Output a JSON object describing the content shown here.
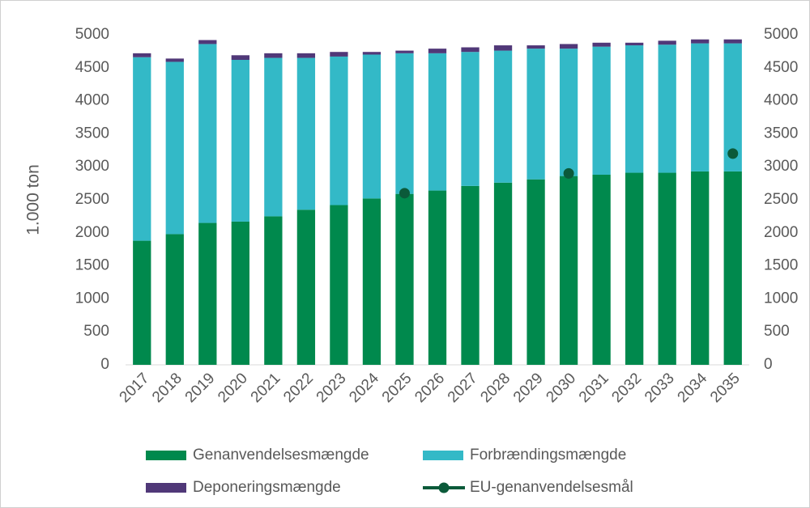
{
  "chart_data": {
    "type": "bar",
    "stacked": true,
    "ylabel": "1.000 ton",
    "categories": [
      "2017",
      "2018",
      "2019",
      "2020",
      "2021",
      "2022",
      "2023",
      "2024",
      "2025",
      "2026",
      "2027",
      "2028",
      "2029",
      "2030",
      "2031",
      "2032",
      "2033",
      "2034",
      "2035"
    ],
    "series": [
      {
        "name": "Genanvendelsesmængde",
        "color": "#00894d",
        "values": [
          1880,
          1980,
          2150,
          2170,
          2250,
          2350,
          2420,
          2520,
          2590,
          2640,
          2710,
          2760,
          2810,
          2860,
          2880,
          2910,
          2910,
          2930,
          2930
        ]
      },
      {
        "name": "Forbrændingsmængde",
        "color": "#33b9c7",
        "values": [
          2780,
          2610,
          2710,
          2450,
          2400,
          2300,
          2250,
          2180,
          2130,
          2080,
          2030,
          2000,
          1980,
          1930,
          1940,
          1930,
          1940,
          1940,
          1940
        ]
      },
      {
        "name": "Deponeringsmængde",
        "color": "#503878",
        "values": [
          60,
          50,
          60,
          70,
          70,
          70,
          70,
          40,
          40,
          70,
          70,
          80,
          50,
          70,
          60,
          40,
          60,
          60,
          60
        ]
      },
      {
        "name": "EU-genanvendelsesmål",
        "type": "line",
        "axis": "y2",
        "color": "#0b5a3a",
        "values": [
          null,
          null,
          null,
          null,
          null,
          null,
          null,
          null,
          2600,
          null,
          null,
          null,
          null,
          2900,
          null,
          null,
          null,
          null,
          3200
        ]
      }
    ],
    "ylim": [
      0,
      5000
    ],
    "yticks": [
      0,
      500,
      1000,
      1500,
      2000,
      2500,
      3000,
      3500,
      4000,
      4500,
      5000
    ],
    "y2lim": [
      0,
      5000
    ],
    "y2ticks": [
      0,
      500,
      1000,
      1500,
      2000,
      2500,
      3000,
      3500,
      4000,
      4500,
      5000
    ],
    "legend": "bottom"
  }
}
